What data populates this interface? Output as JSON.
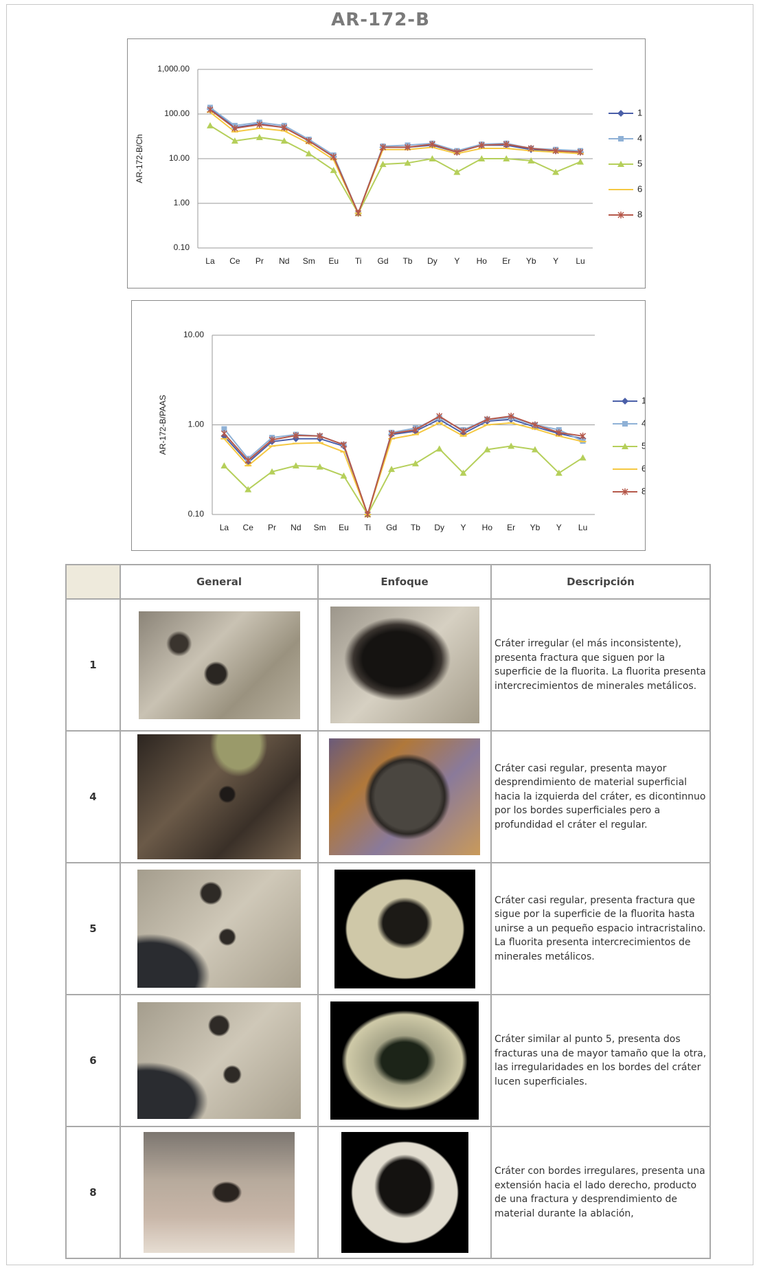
{
  "title": "AR-172-B",
  "chart_data": [
    {
      "type": "line",
      "y_label": "AR-172-B/Ch",
      "categories": [
        "La",
        "Ce",
        "Pr",
        "Nd",
        "Sm",
        "Eu",
        "Ti",
        "Gd",
        "Tb",
        "Dy",
        "Y",
        "Ho",
        "Er",
        "Yb",
        "Y",
        "Lu"
      ],
      "log_scale": true,
      "grid": true,
      "legend": "right",
      "ylim": [
        0.1,
        1000
      ],
      "yticks": [
        {
          "value": 0.1,
          "label": "0.10"
        },
        {
          "value": 1,
          "label": "1.00"
        },
        {
          "value": 10,
          "label": "10.00"
        },
        {
          "value": 100,
          "label": "100.00"
        },
        {
          "value": 1000,
          "label": "1,000.00"
        }
      ],
      "series": [
        {
          "name": "1",
          "color": "#4a5fa8",
          "marker": "diamond",
          "values": [
            130,
            50,
            60,
            50,
            25,
            11,
            0.6,
            18,
            18,
            20,
            14,
            20,
            20,
            16,
            15,
            14
          ]
        },
        {
          "name": "4",
          "color": "#8fb1d6",
          "marker": "square",
          "values": [
            140,
            55,
            65,
            55,
            27,
            12,
            0.6,
            19,
            20,
            22,
            15,
            21,
            22,
            17,
            16,
            15
          ]
        },
        {
          "name": "5",
          "color": "#b5cf5a",
          "marker": "triangle",
          "values": [
            55,
            25,
            30,
            25,
            13,
            5.5,
            0.6,
            7.5,
            8,
            10,
            5,
            10,
            10,
            9,
            5,
            8.5
          ]
        },
        {
          "name": "6",
          "color": "#f5c842",
          "marker": "dash",
          "values": [
            110,
            40,
            48,
            42,
            22,
            9.5,
            0.6,
            16,
            16,
            18,
            13,
            17,
            17,
            15,
            14,
            13
          ]
        },
        {
          "name": "8",
          "color": "#b5584a",
          "marker": "star",
          "values": [
            125,
            48,
            58,
            50,
            25,
            11,
            0.6,
            18,
            18,
            21,
            14,
            20,
            21,
            17,
            15,
            14
          ]
        }
      ]
    },
    {
      "type": "line",
      "y_label": "AR-172-B/PAAS",
      "categories": [
        "La",
        "Ce",
        "Pr",
        "Nd",
        "Sm",
        "Eu",
        "Ti",
        "Gd",
        "Tb",
        "Dy",
        "Y",
        "Ho",
        "Er",
        "Yb",
        "Y",
        "Lu"
      ],
      "log_scale": true,
      "grid": true,
      "legend": "right",
      "ylim": [
        0.1,
        10
      ],
      "yticks": [
        {
          "value": 0.1,
          "label": "0.10"
        },
        {
          "value": 1,
          "label": "1.00"
        },
        {
          "value": 10,
          "label": "10.00"
        }
      ],
      "series": [
        {
          "name": "1",
          "color": "#4a5fa8",
          "marker": "diamond",
          "values": [
            0.75,
            0.38,
            0.65,
            0.7,
            0.7,
            0.58,
            0.1,
            0.78,
            0.85,
            1.15,
            0.8,
            1.1,
            1.15,
            0.95,
            0.8,
            0.7
          ]
        },
        {
          "name": "4",
          "color": "#8fb1d6",
          "marker": "square",
          "values": [
            0.9,
            0.42,
            0.72,
            0.78,
            0.75,
            0.6,
            0.1,
            0.82,
            0.92,
            1.2,
            0.88,
            1.15,
            1.2,
            1.0,
            0.88,
            0.66
          ]
        },
        {
          "name": "5",
          "color": "#b5cf5a",
          "marker": "triangle",
          "values": [
            0.35,
            0.19,
            0.3,
            0.35,
            0.34,
            0.27,
            0.1,
            0.32,
            0.37,
            0.54,
            0.29,
            0.53,
            0.58,
            0.53,
            0.29,
            0.43
          ]
        },
        {
          "name": "6",
          "color": "#f5c842",
          "marker": "dash",
          "values": [
            0.7,
            0.35,
            0.58,
            0.62,
            0.63,
            0.5,
            0.1,
            0.7,
            0.78,
            1.05,
            0.75,
            1.0,
            1.05,
            0.9,
            0.75,
            0.65
          ]
        },
        {
          "name": "8",
          "color": "#b5584a",
          "marker": "star",
          "values": [
            0.8,
            0.4,
            0.68,
            0.76,
            0.75,
            0.6,
            0.1,
            0.8,
            0.88,
            1.25,
            0.85,
            1.15,
            1.25,
            1.0,
            0.82,
            0.75
          ]
        }
      ]
    }
  ],
  "table": {
    "headers": [
      "General",
      "Enfoque",
      "Descripción"
    ],
    "rows": [
      {
        "id": "1",
        "description": "Cráter irregular (el más inconsistente), presenta fractura que siguen por la superficie de la fluorita. La fluorita presenta intercrecimientos de minerales metálicos."
      },
      {
        "id": "4",
        "description": "Cráter casi regular, presenta mayor desprendimiento de material superficial hacia la izquierda del cráter, es dicontinnuo por los bordes superficiales pero a profundidad el cráter el regular."
      },
      {
        "id": "5",
        "description": "Cráter casi regular, presenta fractura que sigue por la superficie de la fluorita hasta unirse a un pequeño espacio intracristalino. La fluorita presenta intercrecimientos de minerales metálicos."
      },
      {
        "id": "6",
        "description": "Cráter similar al punto 5, presenta dos fracturas una de mayor tamaño que la otra, las irregularidades en los bordes del cráter lucen superficiales."
      },
      {
        "id": "8",
        "description": "Cráter con bordes irregulares, presenta una extensión hacia el lado derecho, producto de una fractura y desprendimiento de material durante la ablación,"
      }
    ]
  }
}
